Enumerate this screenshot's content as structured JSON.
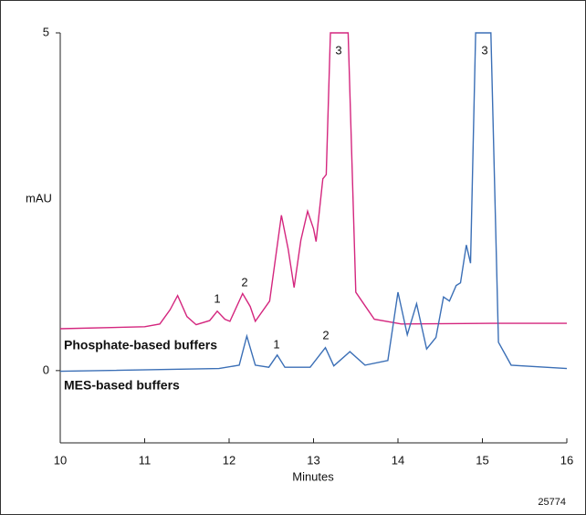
{
  "chart_data": {
    "type": "line",
    "x_label": "Minutes",
    "y_label": "mAU",
    "figure_code": "25774",
    "xlim": [
      10,
      16
    ],
    "xticks": [
      10,
      11,
      12,
      13,
      14,
      15,
      16
    ],
    "ylim": [
      -1.07,
      5
    ],
    "yticks": [
      0,
      5
    ],
    "series": [
      {
        "name": "Phosphate-based buffers",
        "color": "#d4267e",
        "peak_labels": [
          "1",
          "2",
          "3"
        ],
        "x": [
          10,
          11.0,
          11.18,
          11.3,
          11.39,
          11.5,
          11.61,
          11.77,
          11.86,
          11.95,
          12.01,
          12.16,
          12.25,
          12.31,
          12.48,
          12.62,
          12.7,
          12.77,
          12.85,
          12.93,
          13.0,
          13.03,
          13.11,
          13.15,
          13.2,
          13.41,
          13.5,
          13.61,
          13.72,
          14.04,
          15.12,
          16
        ],
        "values": [
          0.62,
          0.65,
          0.69,
          0.9,
          1.11,
          0.8,
          0.68,
          0.74,
          0.88,
          0.76,
          0.73,
          1.14,
          0.95,
          0.73,
          1.03,
          2.3,
          1.8,
          1.23,
          1.93,
          2.36,
          2.1,
          1.91,
          2.84,
          2.9,
          5,
          5,
          1.16,
          0.96,
          0.76,
          0.69,
          0.7,
          0.7
        ]
      },
      {
        "name": "MES-based buffers",
        "color": "#3b6fb6",
        "peak_labels": [
          "1",
          "2",
          "3"
        ],
        "x": [
          10,
          11.88,
          12.12,
          12.21,
          12.31,
          12.47,
          12.57,
          12.66,
          12.96,
          13.14,
          13.24,
          13.43,
          13.61,
          13.88,
          14.0,
          14.11,
          14.22,
          14.34,
          14.45,
          14.54,
          14.61,
          14.69,
          14.74,
          14.81,
          14.86,
          14.92,
          15.1,
          15.19,
          15.34,
          16
        ],
        "values": [
          -0.01,
          0.03,
          0.08,
          0.51,
          0.08,
          0.05,
          0.23,
          0.05,
          0.05,
          0.34,
          0.07,
          0.28,
          0.08,
          0.15,
          1.16,
          0.53,
          0.99,
          0.32,
          0.49,
          1.09,
          1.03,
          1.26,
          1.3,
          1.86,
          1.59,
          5,
          5,
          0.42,
          0.08,
          0.03
        ]
      }
    ]
  }
}
